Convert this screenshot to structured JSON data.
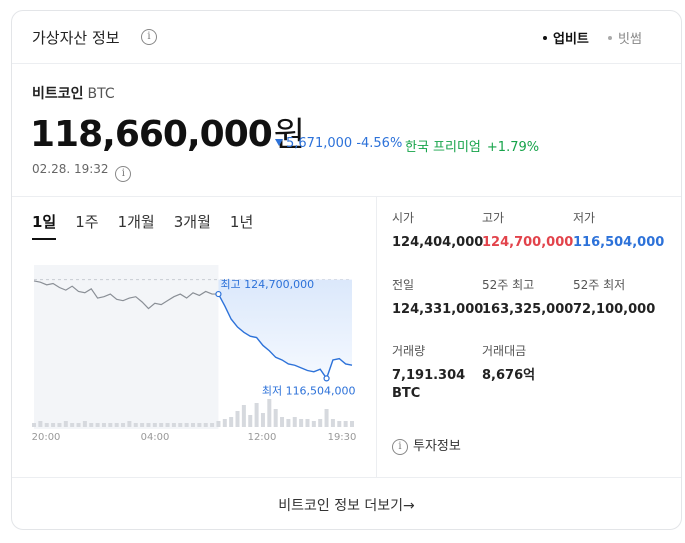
{
  "header": {
    "title": "가상자산 정보",
    "info_icon": "i",
    "sources": [
      {
        "label": "업비트",
        "active": true
      },
      {
        "label": "빗썸",
        "active": false
      }
    ]
  },
  "coin": {
    "name": "비트코인",
    "symbol": "BTC",
    "price": "118,660,000",
    "unit": "원",
    "change": "5,671,000",
    "change_pct": "-4.56%",
    "premium_label": "한국 프리미엄",
    "premium_pct": "+1.79%",
    "timestamp": "02.28. 19:32"
  },
  "tabs": [
    "1일",
    "1주",
    "1개월",
    "3개월",
    "1년"
  ],
  "chart_data": {
    "type": "line",
    "x_ticks": [
      "20:00",
      "04:00",
      "12:00",
      "19:30"
    ],
    "high_label": "최고 124,700,000",
    "low_label": "최저 116,504,000",
    "high": 124700000,
    "low": 116504000,
    "values": [
      123.9,
      123.8,
      123.6,
      123.7,
      123.4,
      123.2,
      123.5,
      123.1,
      123.0,
      123.3,
      122.6,
      122.7,
      122.9,
      122.5,
      122.4,
      122.6,
      122.7,
      122.3,
      121.8,
      122.2,
      122.1,
      122.4,
      122.7,
      122.9,
      122.6,
      123.0,
      122.8,
      123.1,
      122.9,
      122.9,
      122.0,
      121.0,
      120.4,
      120.0,
      119.7,
      119.6,
      119.0,
      118.6,
      118.1,
      117.9,
      117.6,
      117.5,
      117.3,
      117.1,
      117.0,
      117.2,
      116.5,
      117.9,
      118.0,
      117.6,
      117.5
    ],
    "volume": [
      2,
      3,
      2,
      2,
      2,
      3,
      2,
      2,
      3,
      2,
      2,
      2,
      2,
      2,
      2,
      3,
      2,
      2,
      2,
      2,
      2,
      2,
      2,
      2,
      2,
      2,
      2,
      2,
      2,
      3,
      4,
      5,
      8,
      11,
      6,
      12,
      7,
      14,
      9,
      5,
      4,
      5,
      4,
      4,
      3,
      4,
      9,
      4,
      3,
      3,
      3
    ],
    "colors": {
      "line": "#2d72d9",
      "past_line": "#8a8f96",
      "low": "#2d72d9"
    }
  },
  "stats": [
    {
      "label": "시가",
      "value": "124,404,000",
      "color": "#222222"
    },
    {
      "label": "고가",
      "value": "124,700,000",
      "color": "#e2434b"
    },
    {
      "label": "저가",
      "value": "116,504,000",
      "color": "#2d72d9"
    },
    {
      "label": "전일",
      "value": "124,331,000",
      "color": "#222222"
    },
    {
      "label": "52주 최고",
      "value": "163,325,000",
      "color": "#222222"
    },
    {
      "label": "52주 최저",
      "value": "72,100,000",
      "color": "#222222"
    },
    {
      "label": "거래량",
      "value": "7,191.304",
      "value2": "BTC",
      "color": "#222222"
    },
    {
      "label": "거래대금",
      "value": "8,676억",
      "color": "#222222"
    }
  ],
  "invest_label": "투자정보",
  "footer": {
    "more_label": "비트코인 정보 더보기",
    "arrow": "→"
  }
}
